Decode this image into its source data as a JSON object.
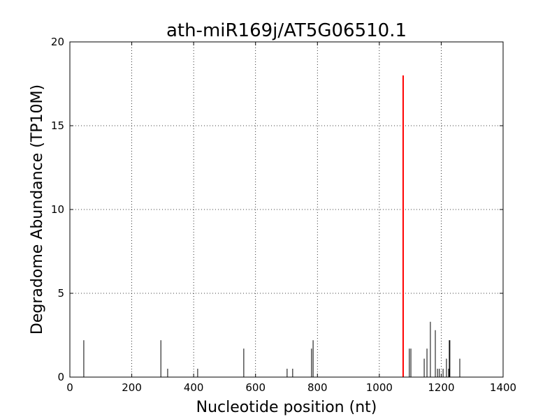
{
  "chart_data": {
    "type": "stem",
    "title": "ath-miR169j/AT5G06510.1",
    "x_label": "Nucleotide position (nt)",
    "y_label": "Degradome Abundance (TP10M)",
    "xlim": [
      0,
      1400
    ],
    "xticks": [
      0,
      200,
      400,
      600,
      800,
      1000,
      1200,
      1400
    ],
    "ylim": [
      0,
      20
    ],
    "yticks": [
      0,
      5,
      10,
      15,
      20
    ],
    "grid": true,
    "series": [
      {
        "color": "#000000",
        "x": [
          45,
          294,
          316,
          413,
          562,
          702,
          720,
          781,
          786,
          1097,
          1102,
          1145,
          1154,
          1165,
          1181,
          1188,
          1194,
          1206,
          1217,
          1224,
          1226,
          1228,
          1260
        ],
        "values": [
          2.2,
          2.2,
          0.5,
          0.5,
          1.7,
          0.5,
          0.5,
          1.7,
          2.2,
          1.7,
          1.7,
          1.1,
          1.7,
          3.3,
          2.8,
          0.5,
          0.5,
          0.5,
          1.1,
          0.5,
          2.2,
          2.2,
          1.1
        ]
      },
      {
        "color": "#ff0000",
        "x": [
          1077
        ],
        "values": [
          18
        ]
      }
    ]
  }
}
